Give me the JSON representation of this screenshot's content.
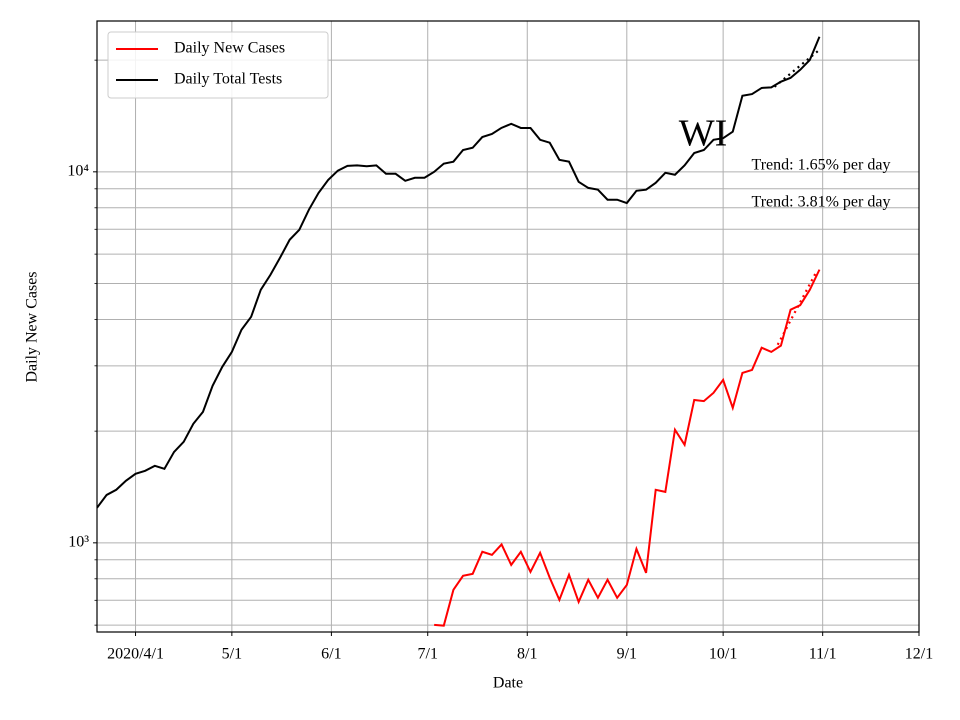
{
  "chart_data": {
    "type": "line",
    "xlabel": "Date",
    "ylabel": "Daily New Cases",
    "log_scale_y": true,
    "grid": true,
    "legend": "upper left",
    "xlim": [
      "2020-03-20",
      "2020-12-01"
    ],
    "xticks": [
      {
        "value": "2020-04-01",
        "label": "2020/4/1"
      },
      {
        "value": "2020-05-01",
        "label": "5/1"
      },
      {
        "value": "2020-06-01",
        "label": "6/1"
      },
      {
        "value": "2020-07-01",
        "label": "7/1"
      },
      {
        "value": "2020-08-01",
        "label": "8/1"
      },
      {
        "value": "2020-09-01",
        "label": "9/1"
      },
      {
        "value": "2020-10-01",
        "label": "10/1"
      },
      {
        "value": "2020-11-01",
        "label": "11/1"
      },
      {
        "value": "2020-12-01",
        "label": "12/1"
      }
    ],
    "ylim": [
      575,
      25500
    ],
    "yticks": [
      {
        "value": 1000,
        "label": "10³"
      },
      {
        "value": 10000,
        "label": "10⁴"
      }
    ],
    "yminorticks": [
      600,
      700,
      800,
      900,
      2000,
      3000,
      4000,
      5000,
      6000,
      7000,
      8000,
      9000,
      20000
    ],
    "annotations": [
      "WI",
      "Trend: 1.65% per day",
      "Trend: 3.81% per day"
    ],
    "x": [
      "2020-03-20",
      "2020-03-23",
      "2020-03-26",
      "2020-03-29",
      "2020-04-01",
      "2020-04-04",
      "2020-04-07",
      "2020-04-10",
      "2020-04-13",
      "2020-04-16",
      "2020-04-19",
      "2020-04-22",
      "2020-04-25",
      "2020-04-28",
      "2020-05-01",
      "2020-05-04",
      "2020-05-07",
      "2020-05-10",
      "2020-05-13",
      "2020-05-16",
      "2020-05-19",
      "2020-05-22",
      "2020-05-25",
      "2020-05-28",
      "2020-05-31",
      "2020-06-03",
      "2020-06-06",
      "2020-06-09",
      "2020-06-12",
      "2020-06-15",
      "2020-06-18",
      "2020-06-21",
      "2020-06-24",
      "2020-06-27",
      "2020-06-30",
      "2020-07-03",
      "2020-07-06",
      "2020-07-09",
      "2020-07-12",
      "2020-07-15",
      "2020-07-18",
      "2020-07-21",
      "2020-07-24",
      "2020-07-27",
      "2020-07-30",
      "2020-08-02",
      "2020-08-05",
      "2020-08-08",
      "2020-08-11",
      "2020-08-14",
      "2020-08-17",
      "2020-08-20",
      "2020-08-23",
      "2020-08-26",
      "2020-08-29",
      "2020-09-01",
      "2020-09-04",
      "2020-09-07",
      "2020-09-10",
      "2020-09-13",
      "2020-09-16",
      "2020-09-19",
      "2020-09-22",
      "2020-09-25",
      "2020-09-28",
      "2020-10-01",
      "2020-10-04",
      "2020-10-07",
      "2020-10-10",
      "2020-10-13",
      "2020-10-16",
      "2020-10-19",
      "2020-10-22",
      "2020-10-25",
      "2020-10-28",
      "2020-10-31"
    ],
    "series": [
      {
        "name": "Daily New Cases",
        "color": "#ff0000",
        "values": [
          null,
          null,
          null,
          null,
          null,
          null,
          null,
          null,
          null,
          null,
          null,
          null,
          null,
          null,
          null,
          null,
          null,
          null,
          null,
          null,
          null,
          null,
          null,
          null,
          null,
          null,
          null,
          null,
          null,
          null,
          null,
          null,
          null,
          null,
          null,
          601,
          598,
          747,
          815,
          825,
          946,
          928,
          990,
          872,
          946,
          835,
          940,
          805,
          702,
          820,
          693,
          795,
          711,
          795,
          711,
          770,
          963,
          830,
          1390,
          1372,
          2018,
          1838,
          2427,
          2410,
          2537,
          2749,
          2310,
          2870,
          2925,
          3356,
          3270,
          3400,
          4250,
          4370,
          4808,
          5450
        ],
        "trend": {
          "x": [
            "2020-10-18",
            "2020-10-30"
          ],
          "values": [
            3420,
            5370
          ]
        }
      },
      {
        "name": "Daily Total Tests",
        "color": "#000000",
        "values": [
          1243,
          1346,
          1390,
          1470,
          1535,
          1564,
          1613,
          1583,
          1758,
          1872,
          2094,
          2255,
          2650,
          2980,
          3270,
          3752,
          4066,
          4808,
          5275,
          5866,
          6560,
          6980,
          7906,
          8776,
          9510,
          10070,
          10380,
          10410,
          10350,
          10410,
          9880,
          9880,
          9460,
          9640,
          9640,
          10000,
          10520,
          10650,
          11450,
          11610,
          12410,
          12650,
          13140,
          13470,
          13130,
          13130,
          12200,
          11980,
          10770,
          10650,
          9400,
          9050,
          8950,
          8410,
          8410,
          8240,
          8890,
          8950,
          9340,
          9940,
          9820,
          10410,
          11240,
          11450,
          12200,
          12320,
          12830,
          16030,
          16200,
          16830,
          16890,
          17500,
          17920,
          18840,
          20030,
          23130
        ],
        "trend": {
          "x": [
            "2020-10-17",
            "2020-10-31"
          ],
          "values": [
            16950,
            21330
          ]
        }
      }
    ]
  }
}
